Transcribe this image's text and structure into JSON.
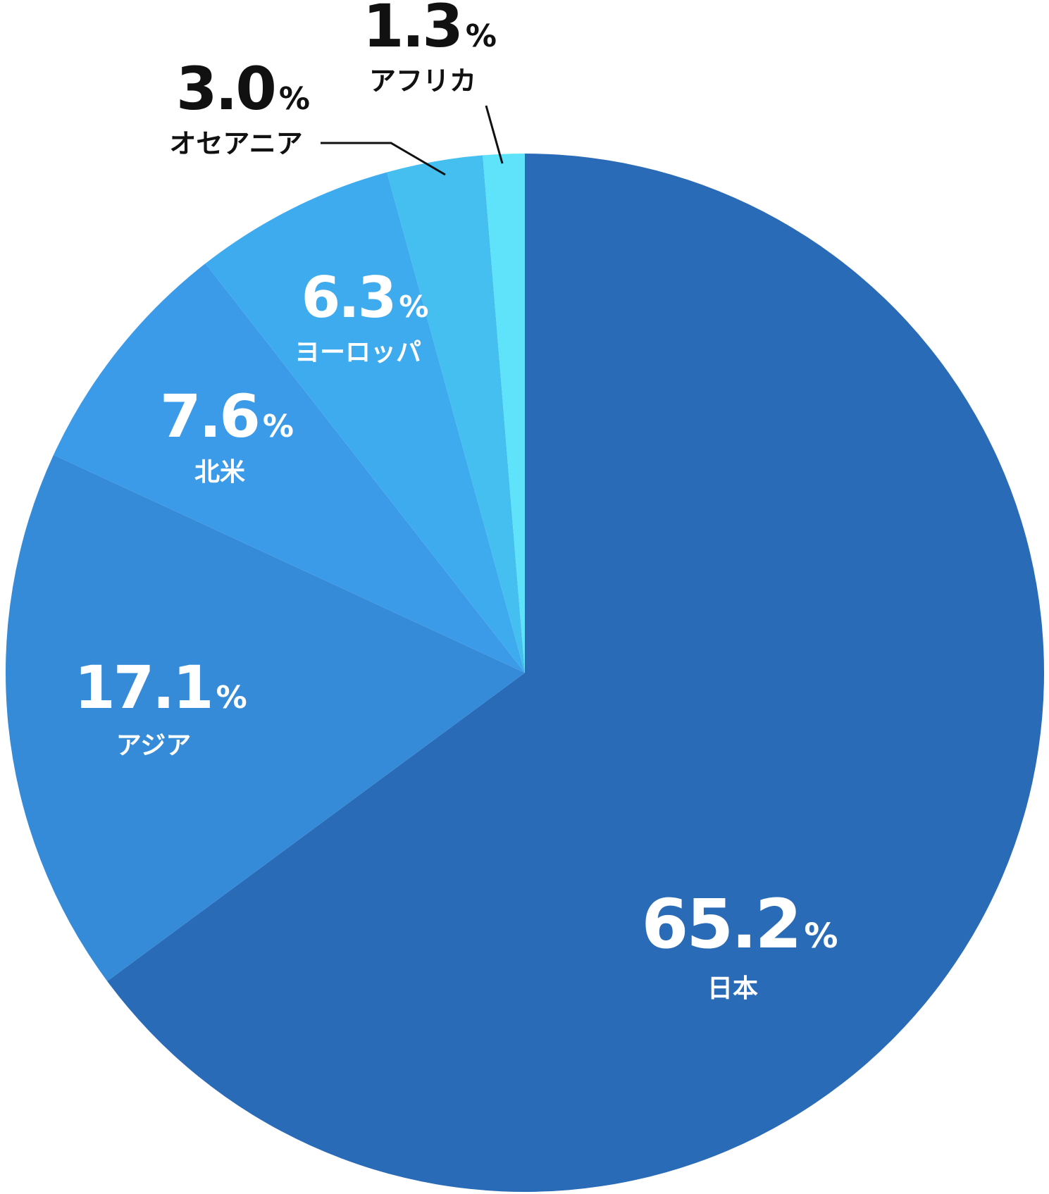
{
  "chart_data": {
    "type": "pie",
    "start_angle_deg": 0,
    "direction": "clockwise",
    "slices": [
      {
        "name": "日本",
        "value": 65.2,
        "value_label": "65.2",
        "unit": "%",
        "color": "#2a6bb8",
        "label_inside": true
      },
      {
        "name": "アジア",
        "value": 17.1,
        "value_label": "17.1",
        "unit": "%",
        "color": "#358bd8",
        "label_inside": true
      },
      {
        "name": "北米",
        "value": 7.6,
        "value_label": "7.6",
        "unit": "%",
        "color": "#3b9be8",
        "label_inside": true
      },
      {
        "name": "ヨーロッパ",
        "value": 6.3,
        "value_label": "6.3",
        "unit": "%",
        "color": "#3fabef",
        "label_inside": true
      },
      {
        "name": "オセアニア",
        "value": 3.0,
        "value_label": "3.0",
        "unit": "%",
        "color": "#44bff0",
        "label_inside": false
      },
      {
        "name": "アフリカ",
        "value": 1.3,
        "value_label": "1.3",
        "unit": "%",
        "color": "#5fe3fa",
        "label_inside": false
      }
    ]
  }
}
